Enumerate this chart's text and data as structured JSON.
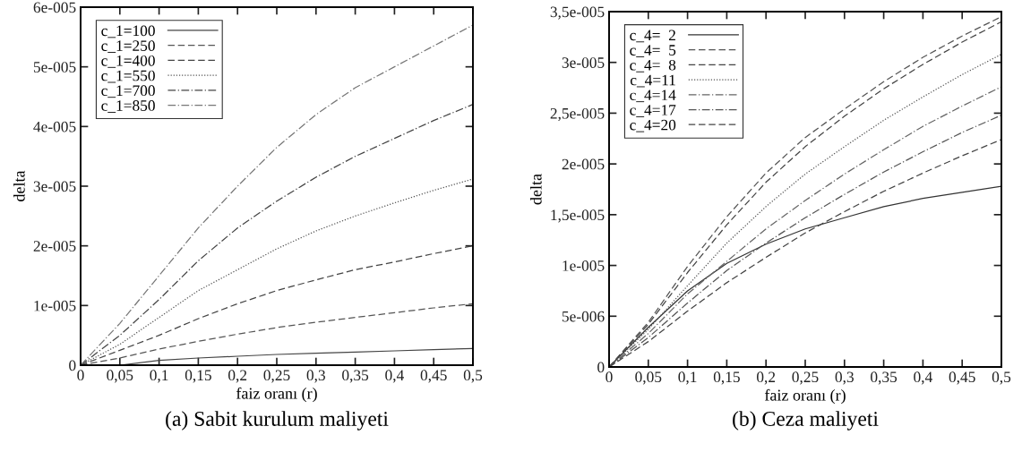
{
  "chart_data": [
    {
      "type": "line",
      "title": "(a) Sabit kurulum maliyeti",
      "xlabel": "faiz oranı (r)",
      "ylabel": "delta",
      "legend": "top left",
      "grid": false,
      "x": [
        0,
        0.05,
        0.1,
        0.15,
        0.2,
        0.25,
        0.3,
        0.35,
        0.4,
        0.45,
        0.5
      ],
      "xlim": [
        0,
        0.5
      ],
      "xticks": [
        0,
        {
          "value": 0.05,
          "label": "0,05"
        },
        {
          "value": 0.1,
          "label": "0,1"
        },
        {
          "value": 0.15,
          "label": "0,15"
        },
        {
          "value": 0.2,
          "label": "0,2"
        },
        {
          "value": 0.25,
          "label": "0,25"
        },
        {
          "value": 0.3,
          "label": "0,3"
        },
        {
          "value": 0.35,
          "label": "0,35"
        },
        {
          "value": 0.4,
          "label": "0,4"
        },
        {
          "value": 0.45,
          "label": "0,45"
        },
        {
          "value": 0.5,
          "label": "0,5"
        }
      ],
      "ylim": [
        0,
        6e-05
      ],
      "yticks": [
        0,
        {
          "value": 1e-05,
          "label": "1e-005"
        },
        {
          "value": 2e-05,
          "label": "2e-005"
        },
        {
          "value": 3e-05,
          "label": "3e-005"
        },
        {
          "value": 4e-05,
          "label": "4e-005"
        },
        {
          "value": 5e-05,
          "label": "5e-005"
        },
        {
          "value": 6e-05,
          "label": "6e-005"
        }
      ],
      "series": [
        {
          "name": "c_1=100",
          "color": "#444444",
          "line_style": "solid",
          "values": [
            0,
            0,
            8e-07,
            1.2e-06,
            1.5e-06,
            1.8e-06,
            2e-06,
            2.2e-06,
            2.4e-06,
            2.6e-06,
            2.8e-06
          ]
        },
        {
          "name": "c_1=250",
          "color": "#555555",
          "line_style": "dashed",
          "values": [
            0,
            1.2e-06,
            2.7e-06,
            4e-06,
            5.2e-06,
            6.3e-06,
            7.2e-06,
            8e-06,
            8.8e-06,
            9.6e-06,
            1.03e-05
          ]
        },
        {
          "name": "c_1=400",
          "color": "#444444",
          "line_style": "dashed",
          "values": [
            0,
            2.5e-06,
            5e-06,
            7.8e-06,
            1.03e-05,
            1.25e-05,
            1.43e-05,
            1.6e-05,
            1.73e-05,
            1.87e-05,
            2e-05
          ]
        },
        {
          "name": "c_1=550",
          "color": "#555555",
          "line_style": "dotted",
          "values": [
            0,
            3.5e-06,
            8e-06,
            1.25e-05,
            1.6e-05,
            1.95e-05,
            2.25e-05,
            2.5e-05,
            2.72e-05,
            2.93e-05,
            3.12e-05
          ]
        },
        {
          "name": "c_1=700",
          "color": "#444444",
          "line_style": "dashdot",
          "values": [
            0,
            5e-06,
            1.1e-05,
            1.75e-05,
            2.3e-05,
            2.75e-05,
            3.15e-05,
            3.5e-05,
            3.8e-05,
            4.1e-05,
            4.37e-05
          ]
        },
        {
          "name": "c_1=850",
          "color": "#777777",
          "line_style": "dashdot",
          "values": [
            0,
            7e-06,
            1.5e-05,
            2.3e-05,
            3e-05,
            3.65e-05,
            4.2e-05,
            4.65e-05,
            5e-05,
            5.35e-05,
            5.7e-05
          ]
        }
      ]
    },
    {
      "type": "line",
      "title": "(b) Ceza maliyeti",
      "xlabel": "faiz oranı (r)",
      "ylabel": "delta",
      "legend": "top left",
      "grid": false,
      "x": [
        0,
        0.05,
        0.1,
        0.15,
        0.2,
        0.25,
        0.3,
        0.35,
        0.4,
        0.45,
        0.5
      ],
      "xlim": [
        0,
        0.5
      ],
      "xticks": [
        0,
        {
          "value": 0.05,
          "label": "0,05"
        },
        {
          "value": 0.1,
          "label": "0,1"
        },
        {
          "value": 0.15,
          "label": "0,15"
        },
        {
          "value": 0.2,
          "label": "0,2"
        },
        {
          "value": 0.25,
          "label": "0,25"
        },
        {
          "value": 0.3,
          "label": "0,3"
        },
        {
          "value": 0.35,
          "label": "0,35"
        },
        {
          "value": 0.4,
          "label": "0,4"
        },
        {
          "value": 0.45,
          "label": "0,45"
        },
        {
          "value": 0.5,
          "label": "0,5"
        }
      ],
      "ylim": [
        0,
        3.5e-05
      ],
      "yticks": [
        0,
        {
          "value": 5e-06,
          "label": "5e-006"
        },
        {
          "value": 1e-05,
          "label": "1e-005"
        },
        {
          "value": 1.5e-05,
          "label": "1,5e-005"
        },
        {
          "value": 2e-05,
          "label": "2e-005"
        },
        {
          "value": 2.5e-05,
          "label": "2,5e-005"
        },
        {
          "value": 3e-05,
          "label": "3e-005"
        },
        {
          "value": 3.5e-05,
          "label": "3,5e-005"
        }
      ],
      "series": [
        {
          "name": "c_4=  2",
          "color": "#333333",
          "line_style": "solid",
          "values": [
            0,
            3.9e-06,
            7.5e-06,
            1.02e-05,
            1.21e-05,
            1.36e-05,
            1.47e-05,
            1.58e-05,
            1.66e-05,
            1.72e-05,
            1.78e-05
          ]
        },
        {
          "name": "c_4=  5",
          "color": "#555555",
          "line_style": "dashed",
          "values": [
            0,
            4.4e-06,
            9.9e-06,
            1.48e-05,
            1.91e-05,
            2.26e-05,
            2.54e-05,
            2.81e-05,
            3.05e-05,
            3.26e-05,
            3.45e-05
          ]
        },
        {
          "name": "c_4=  8",
          "color": "#444444",
          "line_style": "dashed",
          "values": [
            0,
            4.2e-06,
            9.3e-06,
            1.4e-05,
            1.82e-05,
            2.17e-05,
            2.47e-05,
            2.74e-05,
            2.98e-05,
            3.2e-05,
            3.4e-05
          ]
        },
        {
          "name": "c_4=11",
          "color": "#555555",
          "line_style": "dotted",
          "values": [
            0,
            3.7e-06,
            8e-06,
            1.22e-05,
            1.58e-05,
            1.9e-05,
            2.17e-05,
            2.43e-05,
            2.66e-05,
            2.88e-05,
            3.08e-05
          ]
        },
        {
          "name": "c_4=14",
          "color": "#666666",
          "line_style": "dashdot",
          "values": [
            0,
            3.3e-06,
            7.2e-06,
            1.04e-05,
            1.36e-05,
            1.64e-05,
            1.9e-05,
            2.14e-05,
            2.37e-05,
            2.57e-05,
            2.76e-05
          ]
        },
        {
          "name": "c_4=17",
          "color": "#555555",
          "line_style": "dashdot",
          "values": [
            0,
            2.9e-06,
            6.3e-06,
            9.5e-06,
            1.22e-05,
            1.47e-05,
            1.7e-05,
            1.92e-05,
            2.12e-05,
            2.31e-05,
            2.48e-05
          ]
        },
        {
          "name": "c_4=20",
          "color": "#444444",
          "line_style": "dashed",
          "values": [
            0,
            2.5e-06,
            5.5e-06,
            8.3e-06,
            1.08e-05,
            1.32e-05,
            1.53e-05,
            1.73e-05,
            1.91e-05,
            2.08e-05,
            2.24e-05
          ]
        }
      ]
    }
  ]
}
